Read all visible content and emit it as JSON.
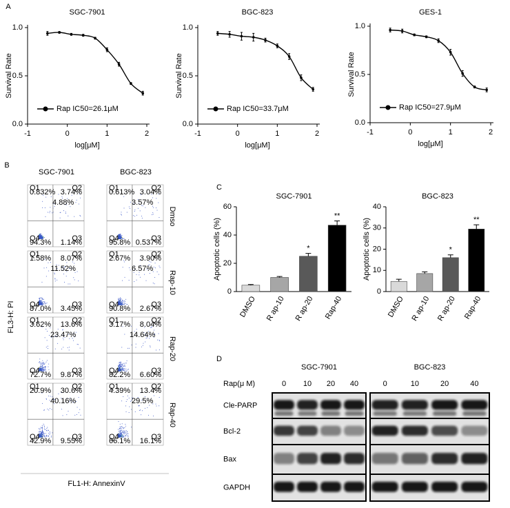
{
  "figure_labels": [
    "A",
    "B",
    "C",
    "D"
  ],
  "chart_data": [
    {
      "type": "line",
      "title": "SGC-7901",
      "x_label": "log[μM]",
      "y_label": "Survival Rate",
      "xlim": [
        -1,
        2
      ],
      "ylim": [
        0,
        1
      ],
      "xticks": [
        -1,
        0,
        1,
        2
      ],
      "yticks": [
        {
          "value": 0,
          "label": "0.0"
        },
        {
          "value": 0.5,
          "label": "0.5"
        },
        {
          "value": 1,
          "label": "1.0"
        }
      ],
      "x": [
        -0.5,
        -0.2,
        0.1,
        0.4,
        0.7,
        1.0,
        1.3,
        1.6,
        1.9
      ],
      "series": [
        {
          "name": "Rap IC50=26.1μM",
          "color": "#000000",
          "values": [
            0.94,
            0.95,
            0.93,
            0.92,
            0.89,
            0.77,
            0.62,
            0.42,
            0.32
          ],
          "errors": [
            0.02,
            0.01,
            0.01,
            0.01,
            0.01,
            0.02,
            0.02,
            0.01,
            0.02
          ]
        }
      ]
    },
    {
      "type": "line",
      "title": "BGC-823",
      "x_label": "log[μM]",
      "y_label": "Survival Rate",
      "xlim": [
        -1,
        2
      ],
      "ylim": [
        0,
        1
      ],
      "xticks": [
        -1,
        0,
        1,
        2
      ],
      "yticks": [
        {
          "value": 0,
          "label": "0.0"
        },
        {
          "value": 0.5,
          "label": "0.5"
        },
        {
          "value": 1,
          "label": "1.0"
        }
      ],
      "x": [
        -0.5,
        -0.2,
        0.1,
        0.4,
        0.7,
        1.0,
        1.3,
        1.6,
        1.9
      ],
      "series": [
        {
          "name": "Rap IC50=33.7μM",
          "color": "#000000",
          "values": [
            0.94,
            0.93,
            0.91,
            0.9,
            0.87,
            0.81,
            0.7,
            0.48,
            0.36
          ],
          "errors": [
            0.02,
            0.03,
            0.04,
            0.04,
            0.02,
            0.02,
            0.03,
            0.03,
            0.02
          ]
        }
      ]
    },
    {
      "type": "line",
      "title": "GES-1",
      "x_label": "log[μM]",
      "y_label": "Survival Rate",
      "xlim": [
        -1,
        2
      ],
      "ylim": [
        0,
        1
      ],
      "xticks": [
        -1,
        0,
        1,
        2
      ],
      "yticks": [
        {
          "value": 0,
          "label": "0.0"
        },
        {
          "value": 0.5,
          "label": "0.5"
        },
        {
          "value": 1,
          "label": "1.0"
        }
      ],
      "x": [
        -0.5,
        -0.2,
        0.1,
        0.4,
        0.7,
        1.0,
        1.3,
        1.6,
        1.9
      ],
      "series": [
        {
          "name": "Rap IC50=27.9μM",
          "color": "#000000",
          "values": [
            0.96,
            0.95,
            0.91,
            0.89,
            0.85,
            0.73,
            0.51,
            0.37,
            0.34
          ],
          "errors": [
            0.02,
            0.02,
            0.01,
            0.01,
            0.02,
            0.03,
            0.03,
            0.01,
            0.02
          ]
        }
      ]
    },
    {
      "type": "bar",
      "title": "SGC-7901",
      "y_label": "Apoptotic cells (%)",
      "categories": [
        "DMSO",
        "R ap-10",
        "R ap-20",
        "Rap-40"
      ],
      "values": [
        4.5,
        10,
        25,
        47
      ],
      "errors": [
        0.5,
        0.7,
        2,
        3
      ],
      "colors": [
        "#d9d9d9",
        "#a6a6a6",
        "#595959",
        "#000000"
      ],
      "significance": [
        null,
        null,
        "*",
        "**"
      ],
      "ylim": [
        0,
        60
      ],
      "yticks": [
        0,
        20,
        40,
        60
      ]
    },
    {
      "type": "bar",
      "title": "BGC-823",
      "y_label": "Apoptotic cells (%)",
      "categories": [
        "DMSO",
        "R ap-10",
        "R ap-20",
        "Rap-40"
      ],
      "values": [
        4.8,
        8.5,
        16,
        29.5
      ],
      "errors": [
        1,
        0.8,
        1.3,
        2
      ],
      "colors": [
        "#d9d9d9",
        "#a6a6a6",
        "#595959",
        "#000000"
      ],
      "significance": [
        null,
        null,
        "*",
        "**"
      ],
      "ylim": [
        0,
        40
      ],
      "yticks": [
        0,
        10,
        20,
        30,
        40
      ]
    }
  ],
  "flow_cytometry": {
    "y_label": "FL3-H: PI",
    "x_label": "FL1-H: AnnexinV",
    "columns": [
      "SGC-7901",
      "BGC-823"
    ],
    "rows": [
      "Dmso",
      "Rap-10",
      "Rap-20",
      "Rap-40"
    ],
    "quadrant_names": [
      "Q1",
      "Q2",
      "Q3",
      "Q4"
    ],
    "panels": [
      [
        {
          "apoptosis": "4.88%",
          "q1": "0.832%",
          "q2": "3.74%",
          "q3": "1.14%",
          "q4": "94.3%"
        },
        {
          "apoptosis": "3.57%",
          "q1": "0.613%",
          "q2": "3.04%",
          "q3": "0.537%",
          "q4": "95.8%"
        }
      ],
      [
        {
          "apoptosis": "11.52%",
          "q1": "1.58%",
          "q2": "8.07%",
          "q3": "3.45%",
          "q4": "87.0%"
        },
        {
          "apoptosis": "6.57%",
          "q1": "2.67%",
          "q2": "3.90%",
          "q3": "2.67%",
          "q4": "90.8%"
        }
      ],
      [
        {
          "apoptosis": "23.47%",
          "q1": "3.62%",
          "q2": "13.6%",
          "q3": "9.87%",
          "q4": "72.7%"
        },
        {
          "apoptosis": "14.64%",
          "q1": "3.17%",
          "q2": "8.04%",
          "q3": "6.60%",
          "q4": "82.2%"
        }
      ],
      [
        {
          "apoptosis": "40.16%",
          "q1": "20.9%",
          "q2": "30.6%",
          "q3": "9.55%",
          "q4": "42.9%"
        },
        {
          "apoptosis": "29.5%",
          "q1": "4.39%",
          "q2": "13.4%",
          "q3": "16.1%",
          "q4": "66.1%"
        }
      ]
    ]
  },
  "western_blot": {
    "dose_label": "Rap(μ M)",
    "groups": [
      {
        "name": "SGC-7901",
        "doses": [
          "0",
          "10",
          "20",
          "40"
        ]
      },
      {
        "name": "BGC-823",
        "doses": [
          "0",
          "10",
          "20",
          "40"
        ]
      }
    ],
    "proteins": [
      "Cle-PARP",
      "Bcl-2",
      "Bax",
      "GAPDH"
    ]
  }
}
